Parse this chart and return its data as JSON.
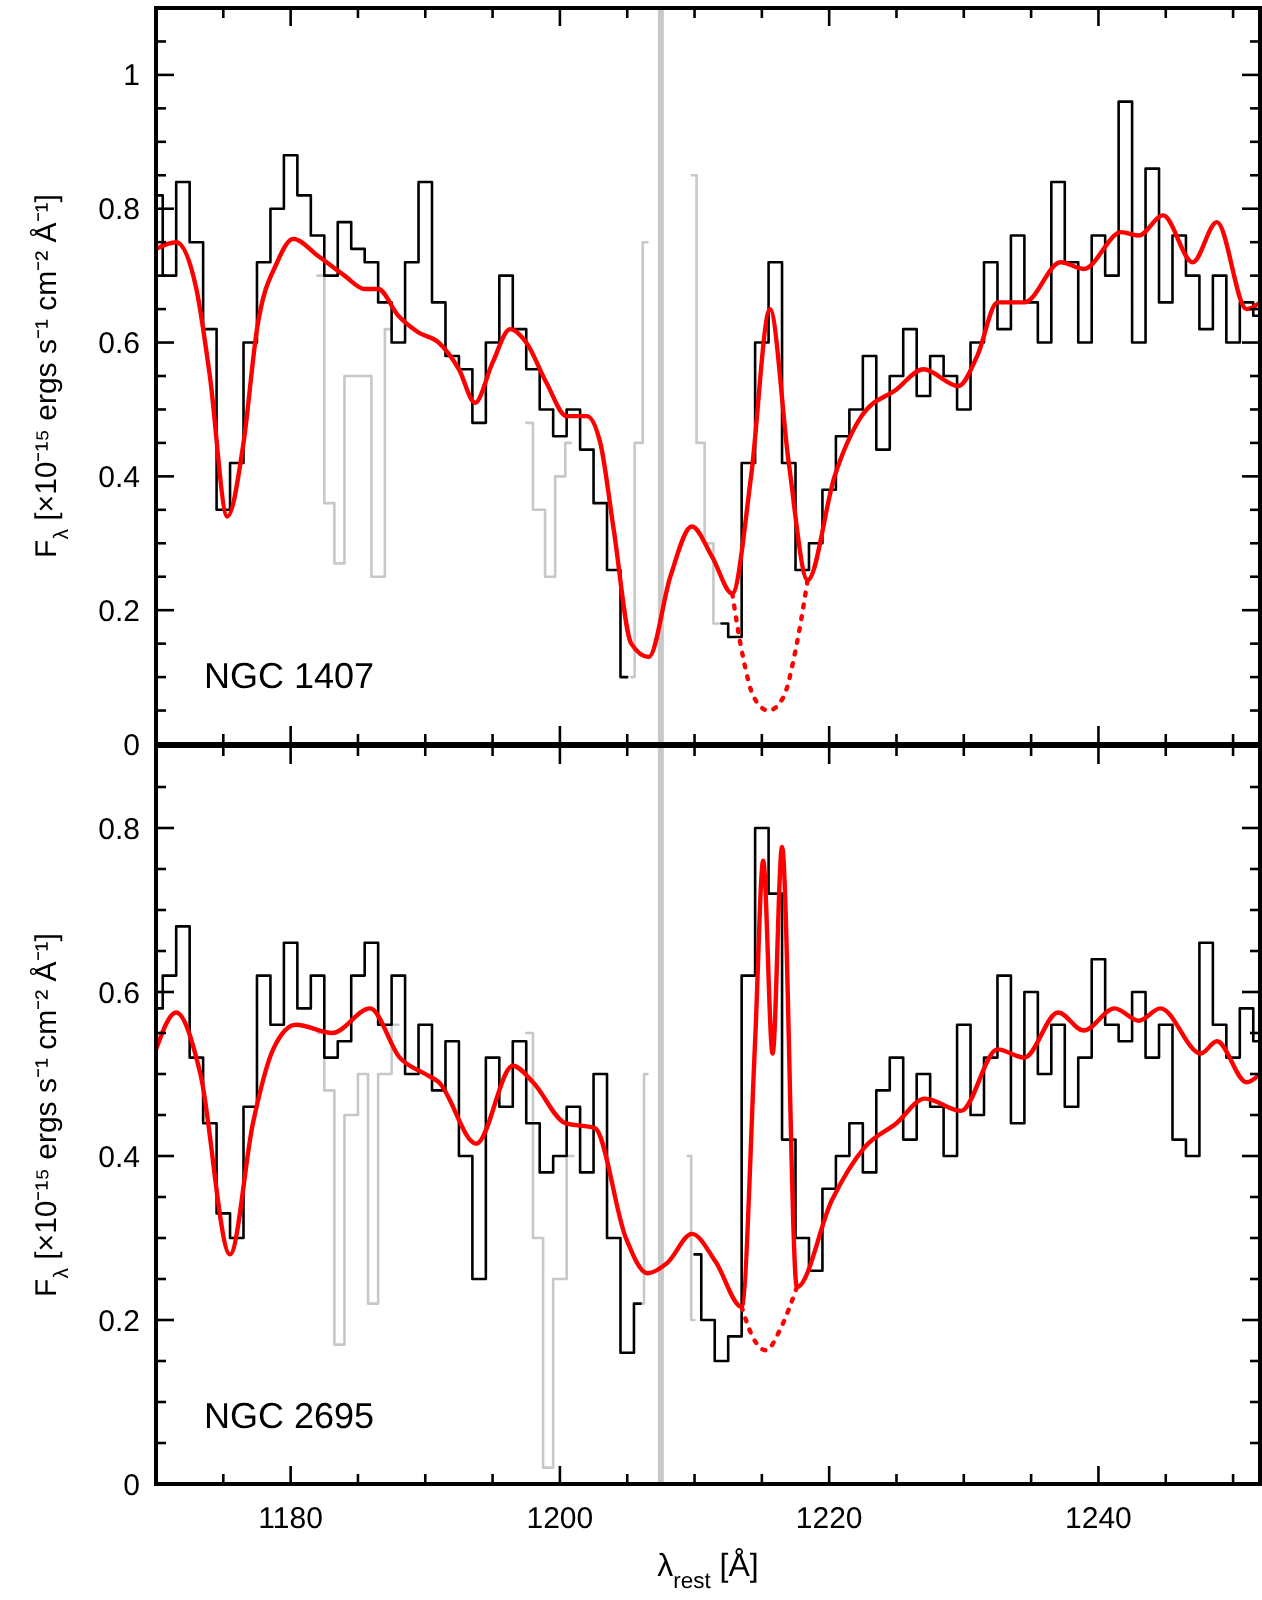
{
  "chart_data": [
    {
      "type": "step",
      "ylabel": "F$_{λ}$ [×10⁻¹⁵ ergs s⁻¹ cm⁻² Å⁻¹]",
      "annotations": [
        "NGC 1407"
      ],
      "tick_labels": "y",
      "xlim": [
        1170,
        1252
      ],
      "ylim": [
        0,
        1.1
      ],
      "xticks": [
        {
          "value": 1175,
          "label": null
        },
        1180,
        {
          "value": 1185,
          "label": null
        },
        {
          "value": 1190,
          "label": null
        },
        {
          "value": 1195,
          "label": null
        },
        1200,
        {
          "value": 1205,
          "label": null
        },
        {
          "value": 1210,
          "label": null
        },
        {
          "value": 1215,
          "label": null
        },
        1220,
        {
          "value": 1225,
          "label": null
        },
        {
          "value": 1230,
          "label": null
        },
        {
          "value": 1235,
          "label": null
        },
        1240,
        {
          "value": 1245,
          "label": null
        },
        {
          "value": 1250,
          "label": null
        }
      ],
      "yticks": [
        0,
        {
          "value": 0.05,
          "label": null
        },
        {
          "value": 0.1,
          "label": null
        },
        {
          "value": 0.15,
          "label": null
        },
        0.2,
        {
          "value": 0.25,
          "label": null
        },
        {
          "value": 0.3,
          "label": null
        },
        {
          "value": 0.35,
          "label": null
        },
        0.4,
        {
          "value": 0.45,
          "label": null
        },
        {
          "value": 0.5,
          "label": null
        },
        {
          "value": 0.55,
          "label": null
        },
        0.6,
        {
          "value": 0.65,
          "label": null
        },
        {
          "value": 0.7,
          "label": null
        },
        {
          "value": 0.75,
          "label": null
        },
        0.8,
        {
          "value": 0.85,
          "label": null
        },
        {
          "value": 0.9,
          "label": null
        },
        {
          "value": 0.95,
          "label": null
        },
        1,
        {
          "value": 1.05,
          "label": null
        }
      ],
      "ref_lines": [
        {
          "axis": "x",
          "value": 1207.5,
          "color": "#c8c8c8"
        }
      ],
      "series": [
        {
          "color": "#c8c8c8",
          "x": [
            1182,
            1183,
            1183.5,
            1184.5,
            1185.5,
            1186.5,
            1187.5,
            1188,
            1197.5,
            1198.5,
            1199.3,
            1200,
            1200.8,
            1201,
            1205.3,
            1205.8,
            1206.5,
            1207,
            1208,
            1209,
            1209.8,
            1210.5,
            1211,
            1211.8
          ],
          "values": [
            0.7,
            0.36,
            0.27,
            0.55,
            0.55,
            0.25,
            0.62,
            null,
            0.48,
            0.35,
            0.25,
            0.4,
            0.45,
            null,
            0.1,
            0.45,
            0.75,
            null,
            null,
            null,
            0.85,
            0.45,
            0.3,
            0.18
          ]
        },
        {
          "color": "#000000",
          "x": [
            1170,
            1171,
            1172,
            1173,
            1174,
            1175,
            1176,
            1177,
            1178,
            1179,
            1180,
            1181,
            1182,
            1183,
            1184,
            1185,
            1186,
            1187,
            1188,
            1189,
            1190,
            1191,
            1192,
            1193,
            1194,
            1195,
            1196,
            1197,
            1198,
            1199,
            1200,
            1201,
            1202,
            1203,
            1204,
            1205,
            1206,
            1212,
            1213,
            1214,
            1215,
            1216,
            1217,
            1218,
            1219,
            1220,
            1221,
            1222,
            1223,
            1224,
            1225,
            1226,
            1227,
            1228,
            1229,
            1230,
            1231,
            1232,
            1233,
            1234,
            1235,
            1236,
            1237,
            1238,
            1239,
            1240,
            1241,
            1242,
            1243,
            1244,
            1245,
            1246,
            1247,
            1248,
            1249,
            1250,
            1251,
            1252
          ],
          "values": [
            0.82,
            0.7,
            0.84,
            0.75,
            0.62,
            0.35,
            0.42,
            0.6,
            0.72,
            0.8,
            0.88,
            0.82,
            0.76,
            0.7,
            0.78,
            0.74,
            0.72,
            0.66,
            0.6,
            0.72,
            0.84,
            0.66,
            0.58,
            0.56,
            0.48,
            0.6,
            0.7,
            0.62,
            0.56,
            0.5,
            0.46,
            0.5,
            0.44,
            0.36,
            0.26,
            0.1,
            null,
            0.18,
            0.16,
            0.42,
            0.6,
            0.72,
            0.42,
            0.26,
            0.3,
            0.38,
            0.46,
            0.5,
            0.58,
            0.44,
            0.55,
            0.62,
            0.52,
            0.58,
            0.55,
            0.5,
            0.6,
            0.72,
            0.62,
            0.76,
            0.66,
            0.6,
            0.84,
            0.72,
            0.6,
            0.76,
            0.7,
            0.96,
            0.6,
            0.86,
            0.66,
            0.76,
            0.7,
            0.62,
            0.7,
            0.6,
            0.66,
            0.64
          ]
        },
        {
          "type": "line",
          "color": "#ff0000",
          "x": [
            1170,
            1171.5,
            1173,
            1174,
            1175.3,
            1176.5,
            1177.5,
            1179,
            1180.2,
            1182,
            1184,
            1185.5,
            1186.5,
            1188,
            1189.5,
            1191,
            1192.5,
            1193.7,
            1195,
            1196.3,
            1197.5,
            1199,
            1200.5,
            1202,
            1203,
            1204,
            1205.3,
            1206.6,
            1208.2,
            1209.8,
            1211.3,
            1212.8,
            1214.2,
            1215.6,
            1217,
            1218.4,
            1220.4,
            1222.4,
            1225,
            1227,
            1229.6,
            1231,
            1232.5,
            1234.5,
            1237.2,
            1238.9,
            1241.7,
            1243,
            1244.8,
            1247,
            1248.8,
            1251,
            1252
          ],
          "values": [
            0.74,
            0.75,
            0.68,
            0.55,
            0.34,
            0.45,
            0.62,
            0.72,
            0.755,
            0.73,
            0.7,
            0.68,
            0.68,
            0.64,
            0.615,
            0.6,
            0.56,
            0.51,
            0.57,
            0.62,
            0.6,
            0.54,
            0.49,
            0.49,
            0.45,
            0.32,
            0.15,
            0.13,
            0.25,
            0.325,
            0.28,
            0.225,
            0.4,
            0.65,
            0.42,
            0.245,
            0.4,
            0.49,
            0.53,
            0.56,
            0.535,
            0.58,
            0.66,
            0.66,
            0.72,
            0.71,
            0.765,
            0.76,
            0.79,
            0.72,
            0.78,
            0.65,
            0.66
          ]
        },
        {
          "type": "line",
          "color": "#ff0000",
          "line_style": "dotted",
          "x": [
            1212.8,
            1213.6,
            1214.4,
            1215.5,
            1216.6,
            1217.5,
            1218.4
          ],
          "values": [
            0.225,
            0.13,
            0.07,
            0.05,
            0.07,
            0.14,
            0.245
          ]
        }
      ]
    },
    {
      "type": "step",
      "xlabel": "λ$_{rest}$ [Å]",
      "ylabel": "F$_{λ}$ [×10⁻¹⁵ ergs s⁻¹ cm⁻² Å⁻¹]",
      "annotations": [
        "NGC 2695"
      ],
      "xlim": [
        1170,
        1252
      ],
      "ylim": [
        0,
        0.9
      ],
      "xticks": [
        {
          "value": 1175,
          "label": null
        },
        1180,
        {
          "value": 1185,
          "label": null
        },
        {
          "value": 1190,
          "label": null
        },
        {
          "value": 1195,
          "label": null
        },
        1200,
        {
          "value": 1205,
          "label": null
        },
        {
          "value": 1210,
          "label": null
        },
        {
          "value": 1215,
          "label": null
        },
        1220,
        {
          "value": 1225,
          "label": null
        },
        {
          "value": 1230,
          "label": null
        },
        {
          "value": 1235,
          "label": null
        },
        1240,
        {
          "value": 1245,
          "label": null
        },
        {
          "value": 1250,
          "label": null
        }
      ],
      "yticks": [
        0,
        {
          "value": 0.05,
          "label": null
        },
        {
          "value": 0.1,
          "label": null
        },
        {
          "value": 0.15,
          "label": null
        },
        0.2,
        {
          "value": 0.25,
          "label": null
        },
        {
          "value": 0.3,
          "label": null
        },
        {
          "value": 0.35,
          "label": null
        },
        0.4,
        {
          "value": 0.45,
          "label": null
        },
        {
          "value": 0.5,
          "label": null
        },
        {
          "value": 0.55,
          "label": null
        },
        0.6,
        {
          "value": 0.65,
          "label": null
        },
        {
          "value": 0.7,
          "label": null
        },
        {
          "value": 0.75,
          "label": null
        },
        0.8,
        {
          "value": 0.85,
          "label": null
        }
      ],
      "ref_lines": [
        {
          "axis": "x",
          "value": 1207.5,
          "color": "#c8c8c8"
        }
      ],
      "series": [
        {
          "color": "#c8c8c8",
          "x": [
            1182,
            1183,
            1183.5,
            1184.5,
            1185.5,
            1186,
            1187,
            1188,
            1189,
            1197.5,
            1198.5,
            1199,
            1200,
            1201,
            1202,
            1206,
            1206.5,
            1207,
            1208,
            1209,
            1209.5,
            1210
          ],
          "values": [
            0.55,
            0.48,
            0.17,
            0.45,
            0.5,
            0.22,
            0.5,
            0.56,
            null,
            0.55,
            0.3,
            0.02,
            0.25,
            0.4,
            null,
            0.22,
            0.5,
            null,
            null,
            null,
            0.4,
            0.2
          ]
        },
        {
          "color": "#000000",
          "x": [
            1170,
            1171,
            1172,
            1173,
            1174,
            1175,
            1176,
            1177,
            1178,
            1179,
            1180,
            1181,
            1182,
            1183,
            1184,
            1185,
            1186,
            1187,
            1188,
            1189,
            1190,
            1191,
            1192,
            1193,
            1194,
            1195,
            1196,
            1197,
            1198,
            1199,
            1200,
            1201,
            1202,
            1203,
            1204,
            1205,
            1206,
            1207,
            1210,
            1211,
            1212,
            1213,
            1214,
            1215,
            1216,
            1217,
            1218,
            1219,
            1220,
            1221,
            1222,
            1223,
            1224,
            1225,
            1226,
            1227,
            1228,
            1229,
            1230,
            1231,
            1232,
            1233,
            1234,
            1235,
            1236,
            1237,
            1238,
            1239,
            1240,
            1241,
            1242,
            1243,
            1244,
            1245,
            1246,
            1247,
            1248,
            1249,
            1250,
            1251,
            1252
          ],
          "values": [
            0.58,
            0.62,
            0.68,
            0.52,
            0.44,
            0.33,
            0.3,
            0.46,
            0.62,
            0.56,
            0.66,
            0.58,
            0.62,
            0.52,
            0.54,
            0.62,
            0.66,
            0.56,
            0.62,
            0.5,
            0.56,
            0.48,
            0.54,
            0.4,
            0.25,
            0.52,
            0.46,
            0.54,
            0.44,
            0.38,
            0.4,
            0.46,
            0.38,
            0.5,
            0.3,
            0.16,
            0.22,
            null,
            0.28,
            0.2,
            0.15,
            0.18,
            0.62,
            0.8,
            0.72,
            0.42,
            0.3,
            0.26,
            0.36,
            0.4,
            0.44,
            0.38,
            0.48,
            0.52,
            0.42,
            0.5,
            0.46,
            0.4,
            0.56,
            0.45,
            0.52,
            0.62,
            0.44,
            0.6,
            0.5,
            0.56,
            0.46,
            0.52,
            0.64,
            0.56,
            0.54,
            0.6,
            0.52,
            0.56,
            0.42,
            0.4,
            0.66,
            0.56,
            0.52,
            0.58,
            0.54
          ]
        },
        {
          "type": "line",
          "color": "#ff0000",
          "x": [
            1170,
            1171.5,
            1173.3,
            1175.5,
            1177.2,
            1178.7,
            1180.4,
            1183.1,
            1185.9,
            1188.1,
            1190,
            1191,
            1193.8,
            1196.5,
            1198,
            1200.4,
            1202.6,
            1204.9,
            1206.5,
            1208,
            1209.8,
            1211.6,
            1213.5,
            1214.5,
            1215.1,
            1215.8,
            1216.5,
            1217.6,
            1220.2,
            1222.6,
            1225,
            1227.1,
            1229.8,
            1232.5,
            1234.5,
            1237,
            1238.9,
            1241.2,
            1243,
            1244.6,
            1247.6,
            1248.8,
            1251,
            1252
          ],
          "values": [
            0.53,
            0.575,
            0.5,
            0.28,
            0.44,
            0.53,
            0.56,
            0.55,
            0.58,
            0.52,
            0.5,
            0.49,
            0.415,
            0.51,
            0.49,
            0.44,
            0.434,
            0.3,
            0.257,
            0.27,
            0.305,
            0.27,
            0.216,
            0.54,
            0.76,
            0.525,
            0.777,
            0.24,
            0.346,
            0.41,
            0.44,
            0.47,
            0.455,
            0.53,
            0.52,
            0.575,
            0.553,
            0.58,
            0.565,
            0.58,
            0.525,
            0.54,
            0.49,
            0.5
          ]
        },
        {
          "type": "line",
          "color": "#ff0000",
          "line_style": "dotted",
          "x": [
            1213.5,
            1214.3,
            1215.3,
            1216.4,
            1217.6
          ],
          "values": [
            0.216,
            0.18,
            0.163,
            0.19,
            0.24
          ]
        }
      ]
    }
  ]
}
